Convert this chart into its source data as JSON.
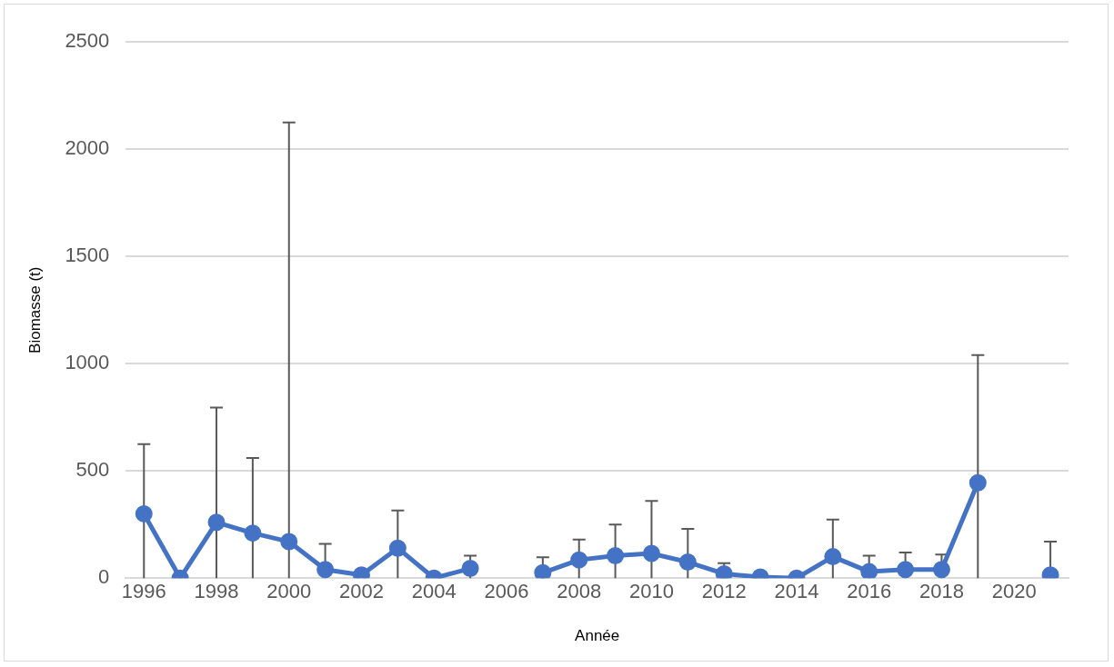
{
  "chart_data": {
    "type": "line",
    "xlabel": "Année",
    "ylabel": "Biomasse (t)",
    "x": [
      1996,
      1997,
      1998,
      1999,
      2000,
      2001,
      2002,
      2003,
      2004,
      2005,
      2006,
      2007,
      2008,
      2009,
      2010,
      2011,
      2012,
      2013,
      2014,
      2015,
      2016,
      2017,
      2018,
      2019,
      2020,
      2021
    ],
    "series": [
      {
        "color": "#4472c4",
        "values": [
          300,
          0,
          260,
          210,
          170,
          40,
          15,
          140,
          0,
          45,
          null,
          25,
          85,
          105,
          115,
          75,
          20,
          5,
          0,
          100,
          30,
          40,
          40,
          445,
          null,
          15
        ],
        "errors": [
          [
            0,
            625
          ],
          null,
          [
            0,
            795
          ],
          [
            0,
            560
          ],
          [
            0,
            2125
          ],
          [
            0,
            160
          ],
          null,
          [
            0,
            315
          ],
          null,
          [
            0,
            105
          ],
          null,
          [
            0,
            97
          ],
          [
            0,
            180
          ],
          [
            0,
            250
          ],
          [
            0,
            360
          ],
          [
            0,
            230
          ],
          [
            0,
            70
          ],
          null,
          null,
          [
            0,
            273
          ],
          [
            0,
            105
          ],
          [
            0,
            120
          ],
          [
            0,
            110
          ],
          [
            0,
            1040
          ],
          null,
          [
            0,
            170
          ]
        ]
      }
    ],
    "xlim": [
      1995.5,
      2021.5
    ],
    "xticks": [
      1996,
      1998,
      2000,
      2002,
      2004,
      2006,
      2008,
      2010,
      2012,
      2014,
      2016,
      2018,
      2020
    ],
    "ylim": [
      0,
      2500
    ],
    "yticks": [
      0,
      500,
      1000,
      1500,
      2000,
      2500
    ],
    "grid": "y",
    "legend": false,
    "marker": "circle",
    "line_style": "solid"
  }
}
